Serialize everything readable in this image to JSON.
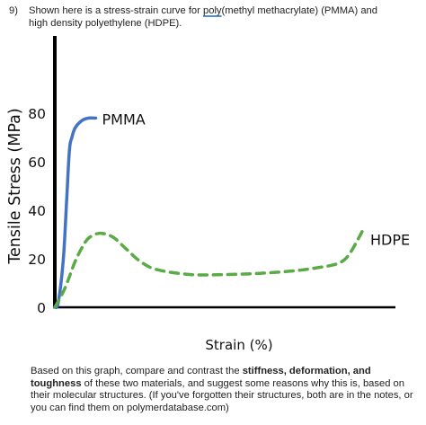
{
  "question": {
    "number": "9)",
    "text_before_link": "Shown here is a stress-strain curve for ",
    "link_text": "poly",
    "text_after_link": "(methyl methacrylate) (PMMA) and",
    "line2": "high density polyethylene (HDPE)."
  },
  "chart_data": {
    "type": "line",
    "ylabel": "Tensile Stress (MPa)",
    "xlabel": "Strain (%)",
    "y_ticks": [
      "0",
      "20",
      "40",
      "60",
      "80"
    ],
    "ylim": [
      0,
      100
    ],
    "xlim": [
      0,
      100
    ],
    "x_tick_labels": false,
    "grid": false,
    "series": [
      {
        "name": "PMMA",
        "color": "#4472c4",
        "style": "solid",
        "x": [
          0,
          1,
          2.5,
          3.5,
          4.3,
          5,
          6,
          8,
          10,
          12
        ],
        "y": [
          0,
          2,
          20,
          45,
          65,
          70,
          74,
          77,
          78,
          78
        ]
      },
      {
        "name": "HDPE",
        "color": "#5aaa46",
        "style": "dashed",
        "x": [
          0,
          3,
          6,
          9,
          11,
          13.5,
          17,
          21,
          25,
          30,
          40,
          50,
          60,
          70,
          78,
          83,
          86,
          89,
          90.5
        ],
        "y": [
          0,
          8,
          19,
          27,
          29.5,
          30.5,
          29,
          24,
          19,
          15.5,
          13.5,
          13.5,
          14,
          15,
          16.5,
          18,
          21,
          28,
          32
        ]
      }
    ]
  },
  "footer": {
    "part1": "Based on this graph, compare and contrast the ",
    "bold1": "stiffness, deformation, and toughness",
    "part2": " of these two materials, and suggest some reasons why this is, based on their molecular structures. (If you've forgotten their structures, both are in the notes, or you can find them on polymerdatabase.com)"
  }
}
